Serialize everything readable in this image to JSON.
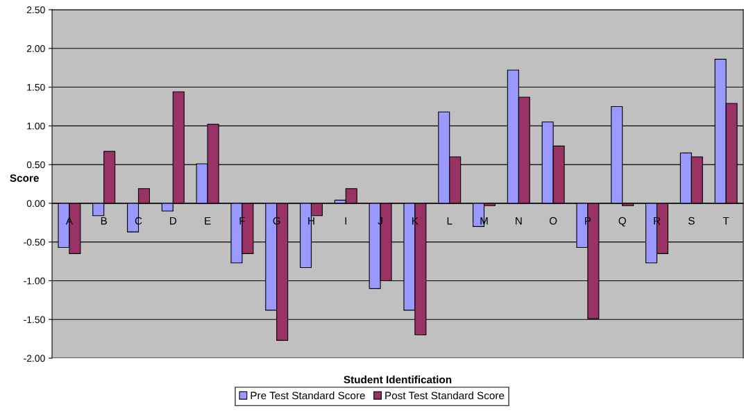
{
  "chart_data": {
    "type": "bar",
    "xlabel": "Student Identification",
    "ylabel": "Score",
    "categories": [
      "A",
      "B",
      "C",
      "D",
      "E",
      "F",
      "G",
      "H",
      "I",
      "J",
      "K",
      "L",
      "M",
      "N",
      "O",
      "P",
      "Q",
      "R",
      "S",
      "T"
    ],
    "series": [
      {
        "name": "Pre Test Standard Score",
        "color": "#9999ff",
        "values": [
          -0.57,
          -0.16,
          -0.37,
          -0.1,
          0.51,
          -0.77,
          -1.38,
          -0.83,
          0.04,
          -1.1,
          -1.38,
          1.18,
          -0.3,
          1.72,
          1.05,
          -0.57,
          1.25,
          -0.77,
          0.65,
          1.86
        ]
      },
      {
        "name": "Post Test Standard Score",
        "color": "#993366",
        "values": [
          -0.65,
          0.67,
          0.19,
          1.44,
          1.02,
          -0.65,
          -1.77,
          -0.16,
          0.19,
          -1.0,
          -1.7,
          0.6,
          -0.03,
          1.37,
          0.74,
          -1.49,
          -0.03,
          -0.65,
          0.6,
          1.29
        ]
      }
    ],
    "ylim": [
      -2.0,
      2.5
    ],
    "yticks": [
      {
        "value": -2.0,
        "label": "-2.00"
      },
      {
        "value": -1.5,
        "label": "-1.50"
      },
      {
        "value": -1.0,
        "label": "-1.00"
      },
      {
        "value": -0.5,
        "label": "-0.50"
      },
      {
        "value": 0.0,
        "label": "0.00"
      },
      {
        "value": 0.5,
        "label": "0.50"
      },
      {
        "value": 1.0,
        "label": "1.00"
      },
      {
        "value": 1.5,
        "label": "1.50"
      },
      {
        "value": 2.0,
        "label": "2.00"
      },
      {
        "value": 2.5,
        "label": "2.50"
      }
    ],
    "grid": "y",
    "legend": "bottom"
  }
}
